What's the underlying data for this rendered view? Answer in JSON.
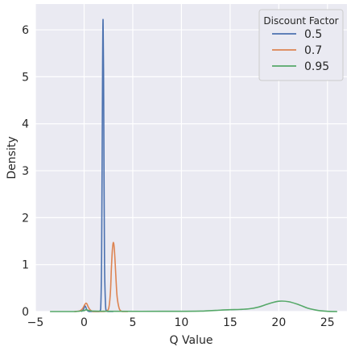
{
  "chart_data": {
    "type": "line",
    "xlabel": "Q Value",
    "ylabel": "Density",
    "xlim": [
      -5,
      27
    ],
    "ylim": [
      0,
      6.55
    ],
    "x_ticks": [
      -5,
      0,
      5,
      10,
      15,
      20,
      25
    ],
    "x_tick_labels": [
      "−5",
      "0",
      "5",
      "10",
      "15",
      "20",
      "25"
    ],
    "y_ticks": [
      0,
      1,
      2,
      3,
      4,
      5,
      6
    ],
    "y_tick_labels": [
      "0",
      "1",
      "2",
      "3",
      "4",
      "5",
      "6"
    ],
    "grid": true,
    "legend": {
      "title": "Discount Factor",
      "position": "top-right"
    },
    "series": [
      {
        "name": "0.5",
        "color": "#4c72b0",
        "x": [
          -0.3,
          -0.1,
          0.0,
          0.1,
          0.2,
          0.3,
          0.5,
          1.0,
          1.5,
          1.7,
          1.8,
          1.9,
          1.95,
          2.0,
          2.05,
          2.1,
          2.2,
          2.3,
          2.5,
          3.0
        ],
        "y": [
          0,
          0.03,
          0.08,
          0.12,
          0.08,
          0.03,
          0,
          0,
          0,
          0.05,
          1.2,
          5.2,
          6.22,
          5.1,
          2.8,
          1.0,
          0.15,
          0.02,
          0,
          0
        ]
      },
      {
        "name": "0.7",
        "color": "#dd8452",
        "x": [
          -1.0,
          -0.5,
          -0.2,
          0.0,
          0.1,
          0.2,
          0.3,
          0.4,
          0.6,
          0.8,
          1.0,
          2.0,
          2.5,
          2.7,
          2.8,
          2.9,
          3.0,
          3.1,
          3.2,
          3.3,
          3.4,
          3.6,
          3.8,
          4.0,
          4.5
        ],
        "y": [
          0,
          0.01,
          0.05,
          0.12,
          0.16,
          0.18,
          0.16,
          0.11,
          0.04,
          0.01,
          0,
          0,
          0.05,
          0.4,
          0.9,
          1.3,
          1.47,
          1.35,
          1.0,
          0.6,
          0.3,
          0.07,
          0.01,
          0,
          0
        ]
      },
      {
        "name": "0.95",
        "color": "#55a868",
        "x": [
          -3.5,
          -1.0,
          0.0,
          0.2,
          0.5,
          1.0,
          3.0,
          8.0,
          12.0,
          14.0,
          15.0,
          16.0,
          17.0,
          18.0,
          19.0,
          20.0,
          21.0,
          22.0,
          23.0,
          24.0,
          25.0,
          26.0
        ],
        "y": [
          0,
          0,
          0.02,
          0.04,
          0.02,
          0.01,
          0.005,
          0.005,
          0.01,
          0.03,
          0.04,
          0.045,
          0.06,
          0.1,
          0.17,
          0.22,
          0.21,
          0.15,
          0.07,
          0.025,
          0.005,
          0
        ]
      }
    ]
  }
}
